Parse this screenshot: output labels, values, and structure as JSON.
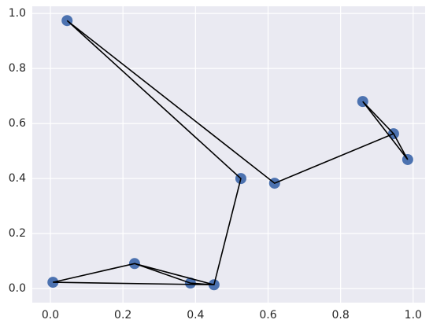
{
  "chart_data": {
    "type": "scatter",
    "x": [
      0.046,
      0.525,
      0.618,
      0.946,
      0.861,
      0.985,
      0.007,
      0.232,
      0.386,
      0.451
    ],
    "y": [
      0.974,
      0.4,
      0.383,
      0.563,
      0.68,
      0.469,
      0.023,
      0.091,
      0.02,
      0.014
    ],
    "color": "#4c72b0",
    "line": {
      "color": "#000000",
      "x": [
        0.232,
        0.386,
        0.451,
        0.232,
        0.007,
        0.451,
        0.525,
        0.046,
        0.618,
        0.946,
        0.861,
        0.985,
        0.946
      ],
      "y": [
        0.091,
        0.02,
        0.014,
        0.091,
        0.023,
        0.014,
        0.4,
        0.974,
        0.383,
        0.563,
        0.68,
        0.469,
        0.563
      ]
    },
    "xlim": [
      -0.05,
      1.033
    ],
    "ylim": [
      -0.051,
      1.026
    ],
    "xticks": [
      {
        "value": 0,
        "label": "0.0"
      },
      0.2,
      0.4,
      0.6,
      0.8,
      {
        "value": 1,
        "label": "1.0"
      }
    ],
    "yticks": [
      {
        "value": 0,
        "label": "0.0"
      },
      0.2,
      0.4,
      0.6,
      0.8,
      {
        "value": 1,
        "label": "1.0"
      }
    ],
    "grid": true,
    "background": "#eaeaf2"
  }
}
